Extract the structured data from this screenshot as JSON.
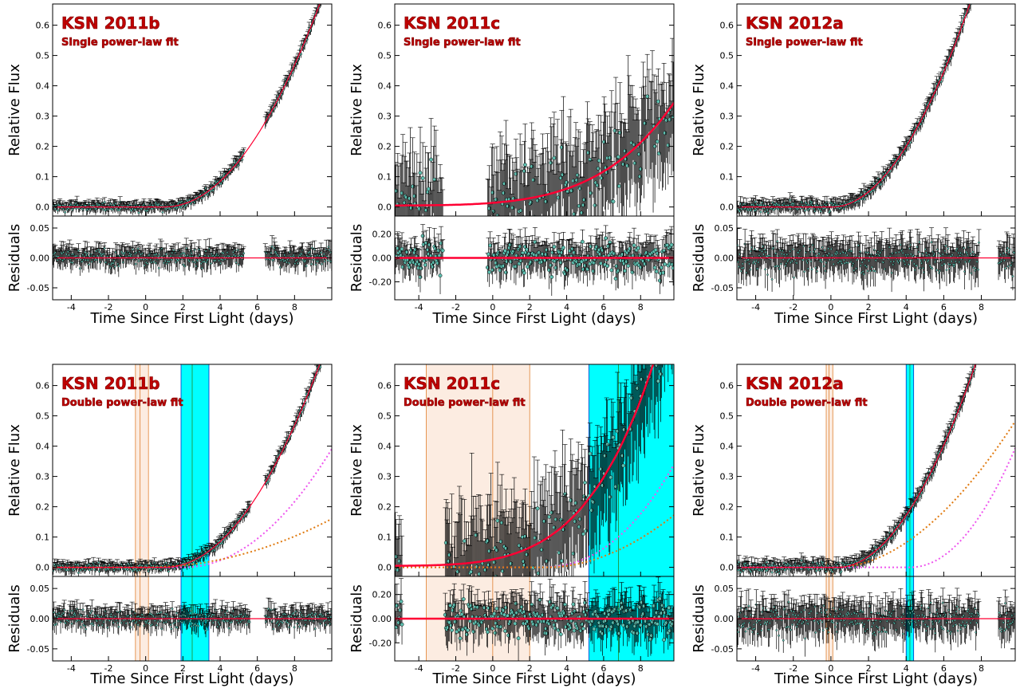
{
  "figure": {
    "xlabel": "Time Since First Light (days)",
    "ylabel_top": "Relative Flux",
    "ylabel_bottom": "Residuals"
  },
  "colors": {
    "data_marker": "#5fbfb0",
    "errorbar": "#000000",
    "fit_line": "#ff0033",
    "component_orange": "#e07a10",
    "component_magenta": "#ee55ee",
    "band_orange": "#f7c8a8",
    "band_cyan": "#00ffff",
    "title": "#c00000"
  },
  "chart_data": [
    {
      "type": "scatter",
      "title": "KSN 2011b",
      "subtitle": "Single power-law fit",
      "xlim": [
        -5,
        10
      ],
      "ylim": [
        -0.03,
        0.67
      ],
      "resid_ylim": [
        -0.07,
        0.07
      ],
      "xticks": [
        -4,
        -2,
        0,
        2,
        4,
        6,
        8
      ],
      "yticks": [
        0.0,
        0.1,
        0.2,
        0.3,
        0.4,
        0.5,
        0.6
      ],
      "resid_yticks": [
        -0.05,
        0.0,
        0.05
      ],
      "model": {
        "t0": 1.0,
        "amp": 0.0092,
        "index": 2.02
      },
      "gaps": [
        [
          5.3,
          6.4
        ]
      ],
      "noise": 0.012,
      "resid_noise": 0.012,
      "bands": []
    },
    {
      "type": "scatter",
      "title": "KSN 2011c",
      "subtitle": "Single power-law fit",
      "xlim": [
        -5.3,
        9.8
      ],
      "ylim": [
        -0.03,
        0.67
      ],
      "resid_ylim": [
        -0.35,
        0.35
      ],
      "xticks": [
        -4,
        -2,
        0,
        2,
        4,
        6,
        8
      ],
      "yticks": [
        0.0,
        0.1,
        0.2,
        0.3,
        0.4,
        0.5,
        0.6
      ],
      "resid_yticks": [
        -0.2,
        0.0,
        0.2
      ],
      "model": {
        "t0": -8.0,
        "amp": 6e-07,
        "index": 4.6,
        "offset": 0.005
      },
      "gaps": [
        [
          -2.7,
          -0.3
        ]
      ],
      "noise": 0.11,
      "resid_noise": 0.1,
      "bands": []
    },
    {
      "type": "scatter",
      "title": "KSN 2012a",
      "subtitle": "Single power-law fit",
      "xlim": [
        -5,
        9.8
      ],
      "ylim": [
        -0.03,
        0.67
      ],
      "resid_ylim": [
        -0.07,
        0.07
      ],
      "xticks": [
        -4,
        -2,
        0,
        2,
        4,
        6,
        8
      ],
      "yticks": [
        0.0,
        0.1,
        0.2,
        0.3,
        0.4,
        0.5,
        0.6
      ],
      "resid_yticks": [
        -0.05,
        0.0,
        0.05
      ],
      "model": {
        "t0": 0.1,
        "amp": 0.0145,
        "index": 1.93
      },
      "gaps": [
        [
          7.9,
          8.9
        ]
      ],
      "noise": 0.015,
      "resid_noise": 0.02,
      "bands": []
    },
    {
      "type": "scatter",
      "title": "KSN 2011b",
      "subtitle": "Double power-law fit",
      "xlim": [
        -5,
        10
      ],
      "ylim": [
        -0.03,
        0.67
      ],
      "resid_ylim": [
        -0.07,
        0.07
      ],
      "xticks": [
        -4,
        -2,
        0,
        2,
        4,
        6,
        8
      ],
      "yticks": [
        0.0,
        0.1,
        0.2,
        0.3,
        0.4,
        0.5,
        0.6
      ],
      "resid_yticks": [
        -0.05,
        0.0,
        0.05
      ],
      "model": {
        "t0": 1.0,
        "amp": 0.0092,
        "index": 2.02
      },
      "components": [
        {
          "color": "component_magenta",
          "t0": 2.0,
          "amp": 0.0055,
          "index": 2.05
        },
        {
          "color": "component_orange",
          "t0": 0.0,
          "amp": 0.0016,
          "index": 2.0
        }
      ],
      "gaps": [
        [
          5.6,
          6.4
        ]
      ],
      "noise": 0.012,
      "resid_noise": 0.012,
      "bands": [
        {
          "x": [
            -0.55,
            0.15
          ],
          "color": "band_orange",
          "center": -0.3
        },
        {
          "x": [
            1.9,
            3.4
          ],
          "color": "band_cyan",
          "center": 2.5
        }
      ]
    },
    {
      "type": "scatter",
      "title": "KSN 2011c",
      "subtitle": "Double power-law fit",
      "xlim": [
        -5.3,
        9.8
      ],
      "ylim": [
        -0.03,
        0.67
      ],
      "resid_ylim": [
        -0.35,
        0.35
      ],
      "xticks": [
        -4,
        -2,
        0,
        2,
        4,
        6,
        8
      ],
      "yticks": [
        0.0,
        0.1,
        0.2,
        0.3,
        0.4,
        0.5,
        0.6
      ],
      "resid_yticks": [
        -0.2,
        0.0,
        0.2
      ],
      "model": {
        "t0": -8.0,
        "amp": 1.2e-06,
        "index": 4.7,
        "offset": 0.005
      },
      "components": [
        {
          "color": "component_magenta",
          "t0": 2.5,
          "amp": 0.0035,
          "index": 2.3
        },
        {
          "color": "component_orange",
          "t0": 3.0,
          "amp": 0.0045,
          "index": 1.9
        }
      ],
      "gaps": [
        [
          -4.9,
          -2.6
        ]
      ],
      "noise": 0.12,
      "resid_noise": 0.12,
      "bands": [
        {
          "x": [
            -3.6,
            2.0
          ],
          "color": "band_orange",
          "center": 0.0
        },
        {
          "x": [
            5.2,
            9.8
          ],
          "color": "band_cyan",
          "center": 6.8
        }
      ]
    },
    {
      "type": "scatter",
      "title": "KSN 2012a",
      "subtitle": "Double power-law fit",
      "xlim": [
        -5,
        9.8
      ],
      "ylim": [
        -0.03,
        0.67
      ],
      "resid_ylim": [
        -0.07,
        0.07
      ],
      "xticks": [
        -4,
        -2,
        0,
        2,
        4,
        6,
        8
      ],
      "yticks": [
        0.0,
        0.1,
        0.2,
        0.3,
        0.4,
        0.5,
        0.6
      ],
      "resid_yticks": [
        -0.05,
        0.0,
        0.05
      ],
      "model": {
        "t0": 0.4,
        "amp": 0.0145,
        "index": 1.93
      },
      "components": [
        {
          "color": "component_orange",
          "t0": 0.3,
          "amp": 0.007,
          "index": 1.88
        },
        {
          "color": "component_magenta",
          "t0": 4.2,
          "amp": 0.0115,
          "index": 2.05
        }
      ],
      "gaps": [
        [
          7.9,
          8.9
        ]
      ],
      "noise": 0.015,
      "resid_noise": 0.02,
      "bands": [
        {
          "x": [
            -0.25,
            0.1
          ],
          "color": "band_orange",
          "center": -0.1
        },
        {
          "x": [
            4.0,
            4.4
          ],
          "color": "band_cyan",
          "center": 4.2
        }
      ]
    }
  ]
}
